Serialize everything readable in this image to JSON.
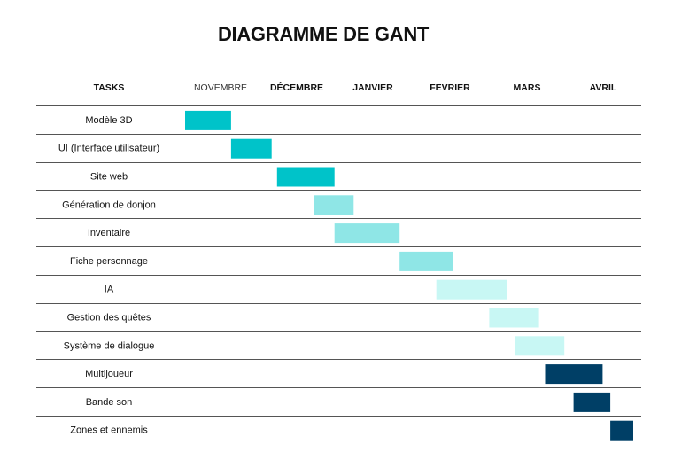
{
  "title": "DIAGRAMME DE GANT",
  "chart_data": {
    "type": "gantt",
    "title": "DIAGRAMME DE GANT",
    "task_header": "TASKS",
    "months": [
      "NOVEMBRE",
      "DÉCEMBRE",
      "JANVIER",
      "FEVRIER",
      "MARS",
      "AVRIL"
    ],
    "month_bold": [
      false,
      true,
      true,
      true,
      true,
      true
    ],
    "axis_unit": "months",
    "x_range": [
      0,
      6
    ],
    "tasks": [
      {
        "name": "Modèle 3D",
        "start": 0.0,
        "end": 0.6,
        "color": "#00C3C9"
      },
      {
        "name": "UI (Interface utilisateur)",
        "start": 0.6,
        "end": 1.13,
        "color": "#00C3C9"
      },
      {
        "name": "Site web",
        "start": 1.2,
        "end": 1.95,
        "color": "#00C3C9"
      },
      {
        "name": "Génération de donjon",
        "start": 1.68,
        "end": 2.2,
        "color": "#8FE6E6"
      },
      {
        "name": "Inventaire",
        "start": 1.95,
        "end": 2.8,
        "color": "#8FE6E6"
      },
      {
        "name": "Fiche personnage",
        "start": 2.8,
        "end": 3.5,
        "color": "#8FE6E6"
      },
      {
        "name": "IA",
        "start": 3.28,
        "end": 4.2,
        "color": "#C8F7F4"
      },
      {
        "name": "Gestion des quêtes",
        "start": 3.97,
        "end": 4.62,
        "color": "#C8F7F4"
      },
      {
        "name": "Système de dialogue",
        "start": 4.3,
        "end": 4.95,
        "color": "#C8F7F4"
      },
      {
        "name": "Multijoueur",
        "start": 4.7,
        "end": 5.45,
        "color": "#003F66"
      },
      {
        "name": "Bande son",
        "start": 5.07,
        "end": 5.55,
        "color": "#003F66"
      },
      {
        "name": "Zones et ennemis",
        "start": 5.55,
        "end": 5.85,
        "color": "#003F66"
      }
    ],
    "grid": false,
    "row_separators": true
  }
}
